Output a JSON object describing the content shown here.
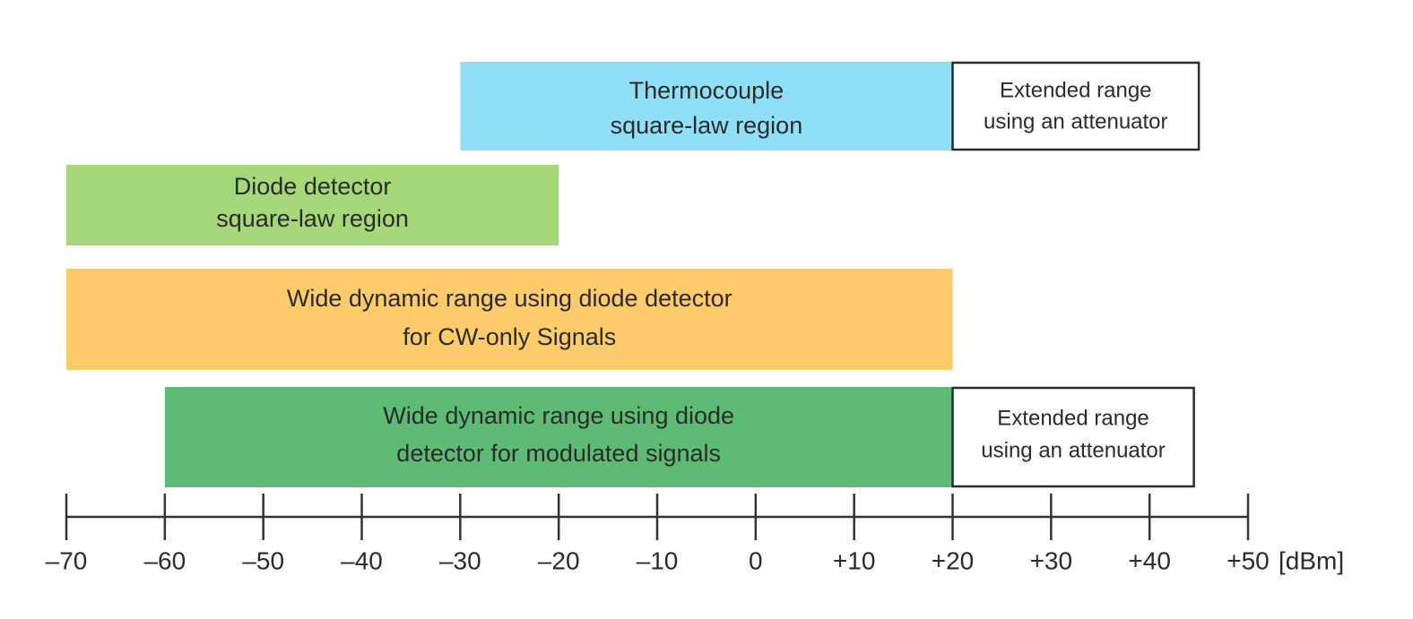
{
  "axis": {
    "unit": "[dBm]",
    "min": -70,
    "max": 50,
    "step": 10,
    "tick_labels": [
      "–70",
      "–60",
      "–50",
      "–40",
      "–30",
      "–20",
      "–10",
      "0",
      "+10",
      "+20",
      "+30",
      "+40",
      "+50"
    ]
  },
  "bars": [
    {
      "id": "thermocouple",
      "from": -30,
      "to": 20,
      "color": "#8fdff6",
      "lines": [
        "Thermocouple",
        "square-law region"
      ],
      "extension": {
        "to": 45,
        "lines": [
          "Extended range",
          "using an attenuator"
        ]
      }
    },
    {
      "id": "diode-square-law",
      "from": -70,
      "to": -20,
      "color": "#a6d779",
      "lines": [
        "Diode detector",
        "square-law region"
      ]
    },
    {
      "id": "cw-only",
      "from": -70,
      "to": 20,
      "color": "#fecb6b",
      "lines": [
        "Wide dynamic range using diode detector",
        "for CW-only Signals"
      ]
    },
    {
      "id": "modulated",
      "from": -60,
      "to": 20,
      "color": "#5dbb75",
      "lines": [
        "Wide dynamic range using diode",
        "detector for modulated signals"
      ],
      "extension": {
        "to": 44.5,
        "lines": [
          "Extended range",
          "using an attenuator"
        ]
      }
    }
  ]
}
